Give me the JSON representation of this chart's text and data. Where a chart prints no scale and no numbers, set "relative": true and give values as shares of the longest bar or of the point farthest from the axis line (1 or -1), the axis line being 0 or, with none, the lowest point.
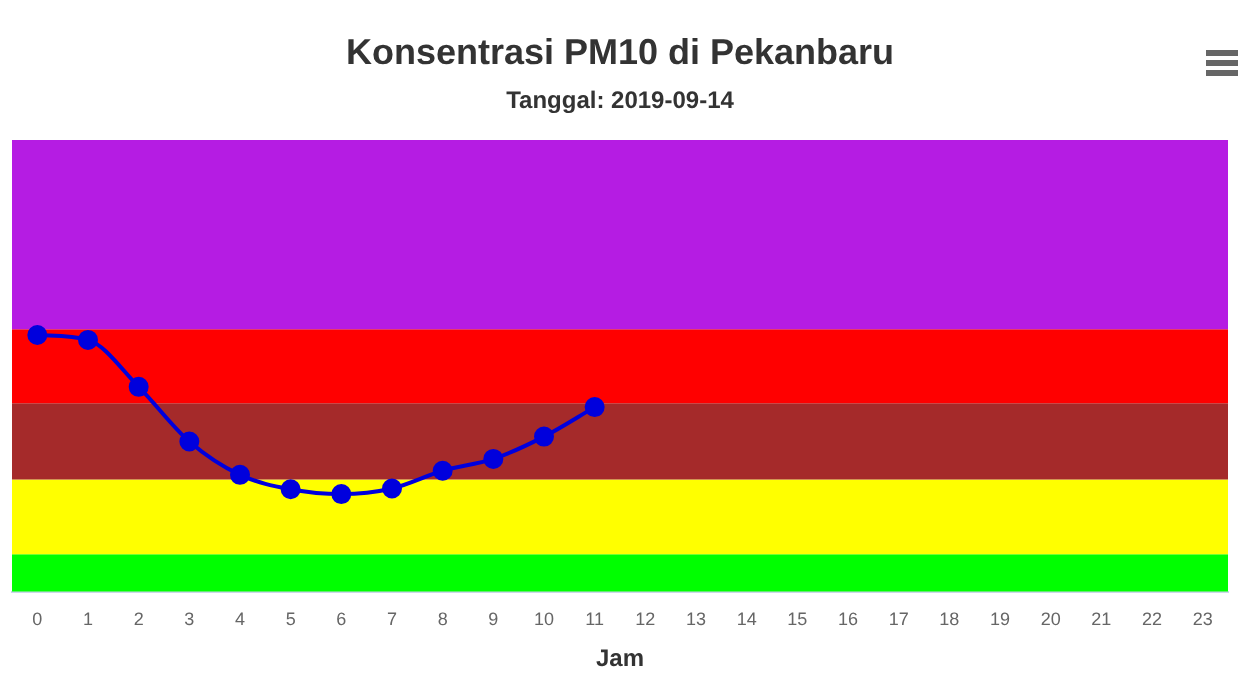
{
  "chart_data": {
    "type": "line",
    "title": "Konsentrasi PM10 di Pekanbaru",
    "subtitle": "Tanggal: 2019-09-14",
    "xlabel": "Jam",
    "relative": true,
    "x": [
      0,
      1,
      2,
      3,
      4,
      5,
      6,
      7,
      8,
      9,
      10,
      11
    ],
    "series": [
      {
        "color": "#0000dd",
        "values": [
          1,
          0.981,
          0.798,
          0.585,
          0.455,
          0.399,
          0.38,
          0.402,
          0.471,
          0.517,
          0.604,
          0.719
        ]
      }
    ],
    "xlim": [
      -0.5,
      23.5
    ],
    "xticks": [
      0,
      1,
      2,
      3,
      4,
      5,
      6,
      7,
      8,
      9,
      10,
      11,
      12,
      13,
      14,
      15,
      16,
      17,
      18,
      19,
      20,
      21,
      22,
      23
    ],
    "bands": [
      {
        "axis": "y",
        "from": 0,
        "to": 0.146,
        "color": "#00ff00"
      },
      {
        "axis": "y",
        "from": 0.146,
        "to": 0.437,
        "color": "#ffff00"
      },
      {
        "axis": "y",
        "from": 0.437,
        "to": 0.734,
        "color": "#a52a2a"
      },
      {
        "axis": "y",
        "from": 0.734,
        "to": 1.022,
        "color": "#ff0000"
      },
      {
        "axis": "y",
        "from": 1.022,
        "to": 1.76,
        "color": "#b51ce3"
      }
    ],
    "marker": "circle",
    "line_style": "solid",
    "grid": false,
    "legend": false
  }
}
